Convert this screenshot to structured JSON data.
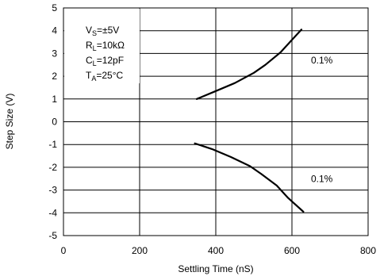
{
  "chart_data": {
    "type": "line",
    "title": "",
    "xlabel": "Settling Time (nS)",
    "ylabel": "Step Size (V)",
    "xlim": [
      0,
      800
    ],
    "ylim": [
      -5,
      5
    ],
    "x_ticks": [
      0,
      200,
      400,
      600,
      800
    ],
    "y_ticks": [
      5,
      4,
      3,
      2,
      1,
      0,
      -1,
      -2,
      -3,
      -4,
      -5
    ],
    "grid": true,
    "colors": {
      "line": "#000000",
      "grid": "#000000",
      "background": "#ffffff"
    },
    "annotations": [
      {
        "text": "0.1%",
        "x": 650,
        "y": 2.7
      },
      {
        "text": "0.1%",
        "x": 650,
        "y": -2.5
      }
    ],
    "conditions": [
      {
        "main": "V",
        "sub": "S",
        "rest": "=±5V"
      },
      {
        "main": "R",
        "sub": "L",
        "rest": "=10kΩ"
      },
      {
        "main": "C",
        "sub": "L",
        "rest": "=12pF"
      },
      {
        "main": "T",
        "sub": "A",
        "rest": "=25°C"
      }
    ],
    "series": [
      {
        "x": [
          350,
          400,
          450,
          500,
          530,
          570,
          600,
          625
        ],
        "y": [
          1.0,
          1.35,
          1.7,
          2.15,
          2.5,
          3.05,
          3.6,
          4.05
        ]
      },
      {
        "x": [
          345,
          390,
          440,
          490,
          520,
          560,
          590,
          630
        ],
        "y": [
          -0.95,
          -1.2,
          -1.55,
          -1.95,
          -2.3,
          -2.8,
          -3.35,
          -3.95
        ]
      }
    ]
  }
}
